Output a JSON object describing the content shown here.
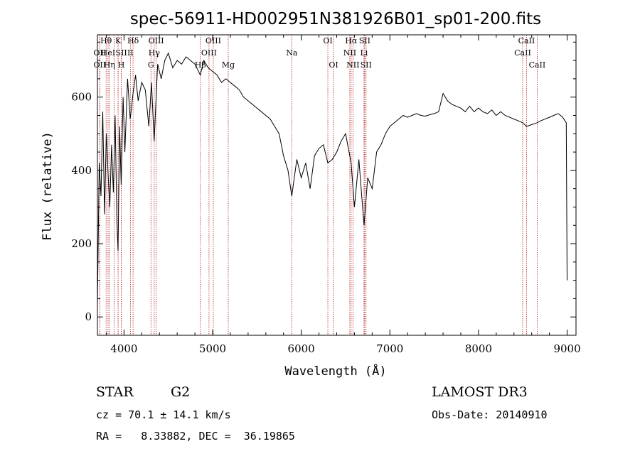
{
  "chart_data": {
    "type": "line",
    "title": "spec-56911-HD002951N381926B01_sp01-200.fits",
    "xlabel": "Wavelength (Å)",
    "ylabel": "Flux (relative)",
    "xlim": [
      3700,
      9100
    ],
    "ylim": [
      -50,
      770
    ],
    "xticks": [
      4000,
      5000,
      6000,
      7000,
      8000,
      9000
    ],
    "yticks": [
      0,
      200,
      400,
      600
    ],
    "grid": false,
    "series": [
      {
        "x": [
          3700,
          3720,
          3740,
          3760,
          3780,
          3800,
          3820,
          3840,
          3860,
          3880,
          3900,
          3920,
          3933,
          3950,
          3968,
          3990,
          4010,
          4040,
          4070,
          4102,
          4130,
          4160,
          4200,
          4240,
          4280,
          4310,
          4340,
          4380,
          4420,
          4460,
          4500,
          4550,
          4600,
          4650,
          4700,
          4750,
          4800,
          4861,
          4900,
          4950,
          5000,
          5050,
          5100,
          5150,
          5200,
          5250,
          5300,
          5350,
          5400,
          5450,
          5500,
          5550,
          5600,
          5650,
          5700,
          5750,
          5800,
          5850,
          5893,
          5950,
          6000,
          6050,
          6100,
          6150,
          6200,
          6250,
          6300,
          6350,
          6400,
          6450,
          6500,
          6563,
          6600,
          6650,
          6708,
          6750,
          6800,
          6850,
          6900,
          6950,
          7000,
          7050,
          7100,
          7150,
          7200,
          7250,
          7300,
          7350,
          7400,
          7450,
          7500,
          7550,
          7600,
          7650,
          7700,
          7750,
          7800,
          7850,
          7900,
          7950,
          8000,
          8050,
          8100,
          8150,
          8200,
          8250,
          8300,
          8350,
          8400,
          8450,
          8498,
          8542,
          8600,
          8662,
          8700,
          8750,
          8800,
          8850,
          8900,
          8950,
          8990,
          9000
        ],
        "y": [
          30,
          420,
          330,
          560,
          280,
          500,
          390,
          300,
          470,
          340,
          550,
          260,
          180,
          520,
          360,
          600,
          450,
          650,
          540,
          610,
          660,
          590,
          640,
          620,
          520,
          640,
          480,
          690,
          650,
          700,
          720,
          680,
          700,
          690,
          710,
          700,
          690,
          660,
          700,
          680,
          670,
          660,
          640,
          650,
          640,
          630,
          620,
          600,
          590,
          580,
          570,
          560,
          550,
          540,
          520,
          500,
          440,
          400,
          330,
          430,
          380,
          420,
          350,
          440,
          460,
          470,
          420,
          430,
          450,
          480,
          500,
          420,
          300,
          430,
          250,
          380,
          350,
          450,
          470,
          500,
          520,
          530,
          540,
          550,
          545,
          550,
          555,
          550,
          548,
          552,
          555,
          560,
          610,
          590,
          580,
          575,
          570,
          560,
          575,
          560,
          570,
          560,
          555,
          565,
          550,
          560,
          550,
          545,
          540,
          535,
          530,
          520,
          525,
          530,
          535,
          540,
          545,
          550,
          555,
          545,
          530,
          100
        ]
      }
    ],
    "lines": [
      {
        "w": 3726,
        "label": "OII",
        "row": 2
      },
      {
        "w": 3727,
        "label": "OII",
        "row": 3
      },
      {
        "w": 3798,
        "label": "Hθ",
        "row": 1
      },
      {
        "w": 3820,
        "label": "HeI",
        "row": 2
      },
      {
        "w": 3835,
        "label": "Hη",
        "row": 3
      },
      {
        "w": 3889,
        "label": "",
        "row": 0
      },
      {
        "w": 3934,
        "label": "K",
        "row": 1
      },
      {
        "w": 3933,
        "label": "",
        "row": 0
      },
      {
        "w": 3969,
        "label": "H",
        "row": 3
      },
      {
        "w": 3970,
        "label": "SII",
        "row": 2
      },
      {
        "w": 4102,
        "label": "Hδ",
        "row": 1
      },
      {
        "w": 4072,
        "label": "II",
        "row": 2
      },
      {
        "w": 4304,
        "label": "G",
        "row": 3
      },
      {
        "w": 4341,
        "label": "Hγ",
        "row": 2
      },
      {
        "w": 4363,
        "label": "OIII",
        "row": 1
      },
      {
        "w": 4861,
        "label": "Hβ",
        "row": 3
      },
      {
        "w": 4959,
        "label": "OIII",
        "row": 2
      },
      {
        "w": 5007,
        "label": "OIII",
        "row": 1
      },
      {
        "w": 5176,
        "label": "Mg",
        "row": 3
      },
      {
        "w": 5893,
        "label": "Na",
        "row": 2
      },
      {
        "w": 6300,
        "label": "OI",
        "row": 1
      },
      {
        "w": 6364,
        "label": "OI",
        "row": 3
      },
      {
        "w": 6548,
        "label": "NII",
        "row": 2
      },
      {
        "w": 6563,
        "label": "Hα",
        "row": 1
      },
      {
        "w": 6583,
        "label": "NII",
        "row": 3
      },
      {
        "w": 6708,
        "label": "Li",
        "row": 2
      },
      {
        "w": 6716,
        "label": "SII",
        "row": 1
      },
      {
        "w": 6731,
        "label": "SII",
        "row": 3
      },
      {
        "w": 8498,
        "label": "CaII",
        "row": 2
      },
      {
        "w": 8542,
        "label": "CaII",
        "row": 1
      },
      {
        "w": 8662,
        "label": "CaII",
        "row": 3
      }
    ]
  },
  "footer": {
    "object_class": "STAR",
    "subclass": "G2",
    "survey": "LAMOST DR3",
    "cz": "cz = 70.1 ± 14.1 km/s",
    "obs_date": "Obs-Date: 20140910",
    "radec": "RA =   8.33882, DEC =  36.19865"
  },
  "colors": {
    "spectrum": "#000000",
    "line_markers": "#b22222"
  }
}
